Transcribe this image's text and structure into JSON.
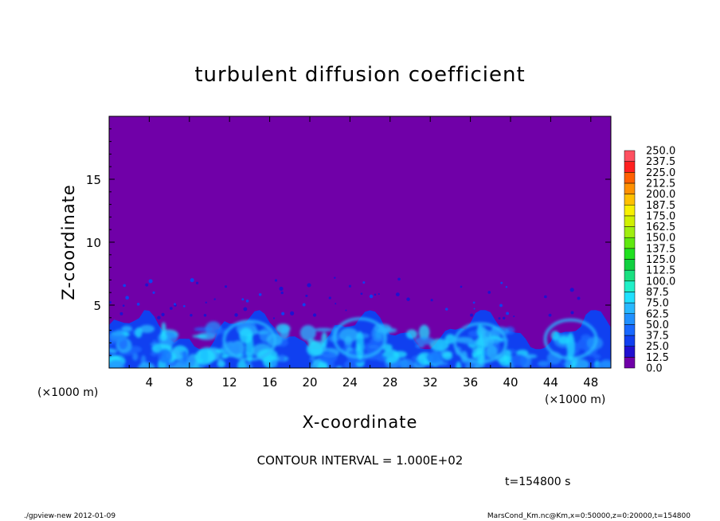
{
  "chart_data": {
    "type": "heatmap",
    "title": "turbulent diffusion coefficient",
    "xlabel": "X-coordinate",
    "ylabel": "Z-coordinate",
    "x_unit": "(×1000 m)",
    "y_unit": "(×1000 m)",
    "xlim": [
      0,
      50
    ],
    "ylim": [
      0,
      20
    ],
    "x_ticks": [
      4,
      8,
      12,
      16,
      20,
      24,
      28,
      32,
      36,
      40,
      44,
      48
    ],
    "y_ticks": [
      5,
      10,
      15
    ],
    "colorbar": {
      "levels": [
        "0.0",
        "12.5",
        "25.0",
        "37.5",
        "50.0",
        "62.5",
        "75.0",
        "87.5",
        "100.0",
        "112.5",
        "125.0",
        "137.5",
        "150.0",
        "162.5",
        "175.0",
        "187.5",
        "200.0",
        "212.5",
        "225.0",
        "237.5",
        "250.0"
      ],
      "colors": [
        "#7000a8",
        "#2010d0",
        "#1040f0",
        "#1868ff",
        "#2090ff",
        "#28b8ff",
        "#20e0ff",
        "#20f0c8",
        "#18e080",
        "#10d040",
        "#20e020",
        "#60e810",
        "#a0ee10",
        "#d0f000",
        "#f8f000",
        "#ffc000",
        "#ff9000",
        "#ff6000",
        "#ff2020",
        "#ff5060",
        "#ff9090"
      ]
    },
    "background_color": "#7000a8",
    "boundary_layer_top_km": 4.5,
    "contour_interval": "CONTOUR INTERVAL = 1.000E+02"
  },
  "time_label": "t=154800 s",
  "footer_left": "./gpview-new   2012-01-09",
  "footer_right": "MarsCond_Km.nc@Km,x=0:50000,z=0:20000,t=154800"
}
